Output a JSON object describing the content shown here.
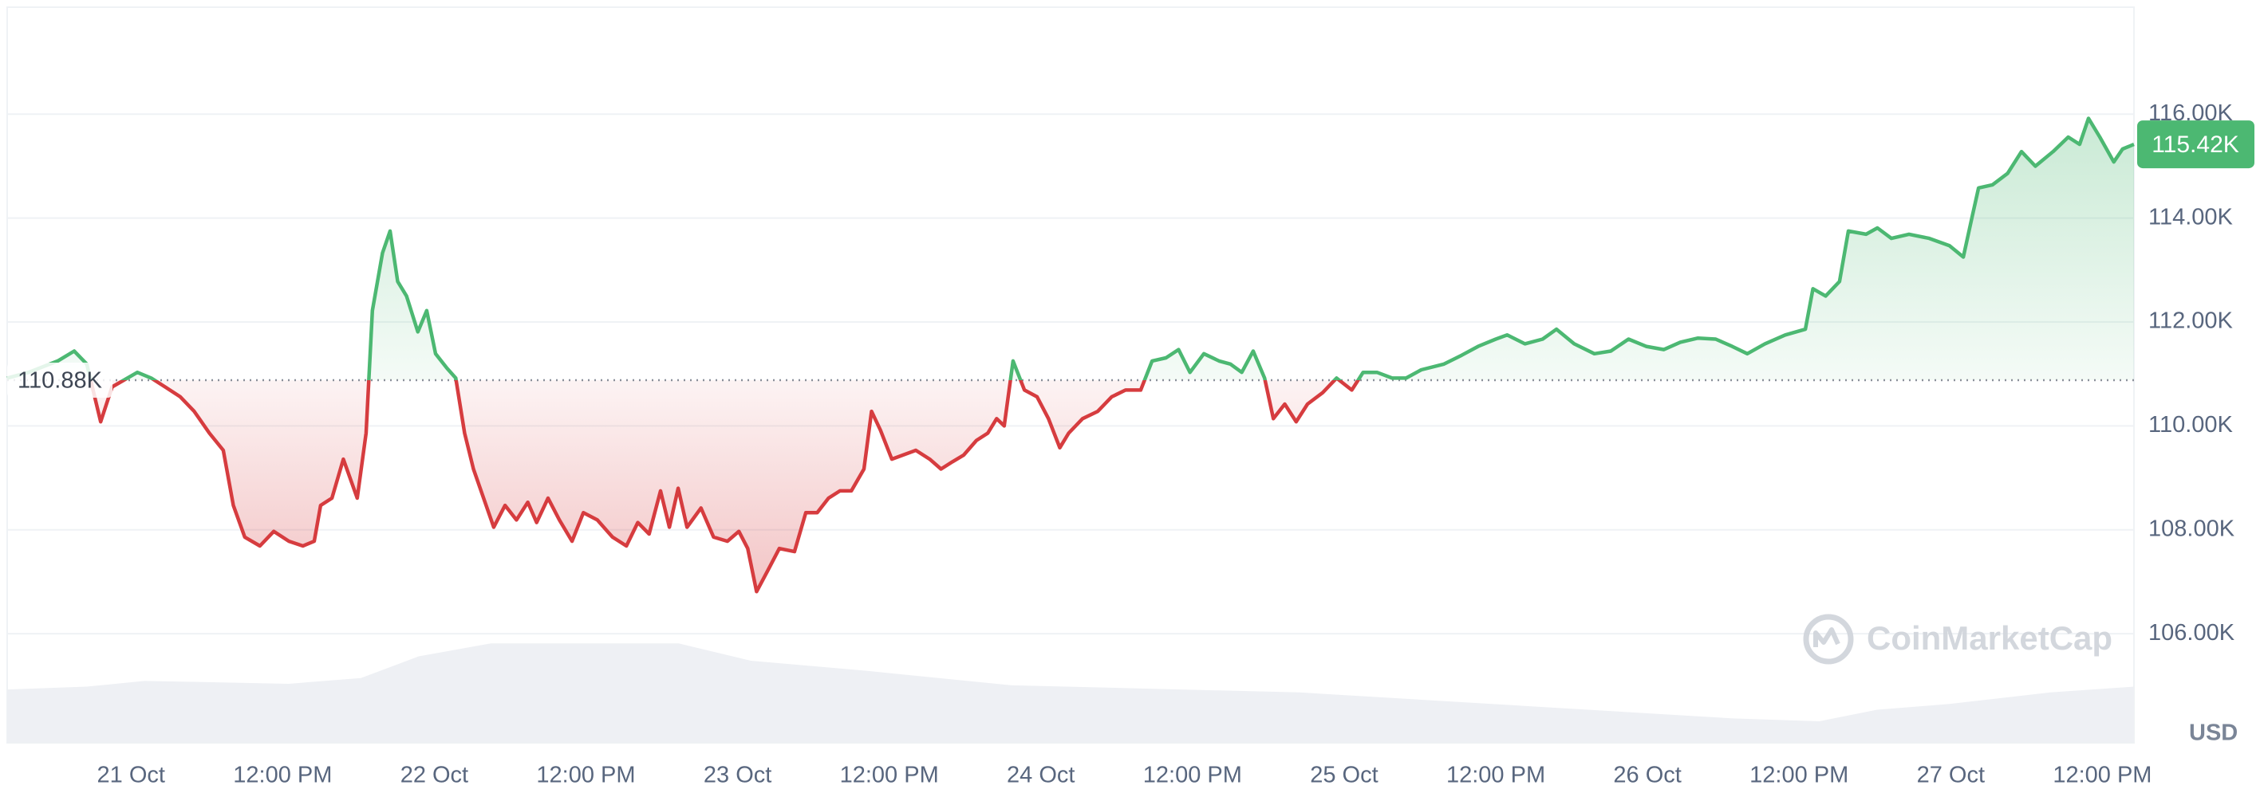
{
  "chart_data": {
    "type": "line",
    "x": [
      -9.8,
      -8.1,
      -5.8,
      -4.5,
      -3.5,
      -2.4,
      -1.5,
      0.5,
      1.6,
      2.7,
      3.9,
      5.0,
      6.2,
      7.3,
      8.1,
      9.0,
      10.2,
      11.3,
      12.5,
      13.6,
      14.5,
      15.0,
      15.9,
      16.8,
      17.9,
      18.6,
      19.1,
      19.9,
      20.5,
      21.1,
      21.8,
      22.7,
      23.4,
      24.1,
      25.0,
      25.7,
      26.4,
      27.1,
      27.9,
      28.7,
      29.6,
      30.5,
      31.4,
      32.1,
      33.0,
      33.9,
      34.9,
      35.8,
      36.9,
      38.1,
      39.2,
      40.1,
      41.0,
      41.9,
      42.6,
      43.3,
      44.0,
      45.1,
      46.1,
      47.2,
      48.1,
      48.8,
      49.5,
      50.4,
      51.3,
      52.5,
      53.4,
      54.3,
      55.2,
      56.1,
      57.0,
      58.0,
      58.6,
      59.3,
      60.2,
      61.1,
      62.1,
      63.2,
      64.1,
      65.0,
      65.9,
      66.9,
      67.8,
      68.5,
      69.1,
      69.8,
      70.7,
      71.7,
      72.6,
      73.5,
      74.2,
      75.3,
      76.5,
      77.6,
      78.7,
      79.9,
      80.8,
      81.9,
      82.9,
      83.8,
      84.9,
      86.1,
      87.0,
      87.9,
      88.8,
      89.7,
      90.4,
      91.3,
      92.2,
      93.1,
      94.3,
      95.4,
      96.6,
      97.5,
      98.6,
      99.8,
      100.9,
      102.1,
      103.9,
      105.3,
      106.6,
      108.0,
      108.9,
      110.3,
      111.7,
      112.8,
      114.2,
      115.8,
      117.1,
      118.5,
      119.9,
      121.3,
      122.6,
      124.0,
      125.4,
      126.7,
      127.9,
      129.3,
      130.9,
      132.5,
      133.1,
      134.1,
      135.2,
      135.9,
      137.3,
      138.2,
      139.3,
      140.7,
      142.3,
      143.9,
      145.0,
      145.7,
      146.2,
      147.3,
      148.5,
      149.6,
      150.7,
      152.1,
      153.3,
      154.2,
      154.9,
      155.8,
      156.9,
      157.6,
      158.5
    ],
    "values": [
      110920,
      111030,
      111250,
      111440,
      111190,
      110080,
      110750,
      111030,
      110920,
      110750,
      110560,
      110280,
      109860,
      109530,
      108470,
      107860,
      107690,
      107970,
      107780,
      107690,
      107780,
      108470,
      108610,
      109360,
      108610,
      109860,
      112220,
      113330,
      113750,
      112780,
      112500,
      111810,
      112220,
      111390,
      111110,
      110920,
      109860,
      109170,
      108610,
      108050,
      108470,
      108190,
      108530,
      108140,
      108610,
      108190,
      107780,
      108330,
      108190,
      107860,
      107690,
      108140,
      107920,
      108750,
      108050,
      108800,
      108050,
      108420,
      107860,
      107780,
      107970,
      107640,
      106810,
      107220,
      107640,
      107580,
      108330,
      108330,
      108610,
      108750,
      108750,
      109170,
      110280,
      109920,
      109360,
      109440,
      109530,
      109360,
      109170,
      109310,
      109440,
      109720,
      109860,
      110140,
      110000,
      111250,
      110690,
      110560,
      110140,
      109580,
      109860,
      110140,
      110280,
      110560,
      110690,
      110690,
      111250,
      111310,
      111470,
      111030,
      111390,
      111250,
      111190,
      111030,
      111440,
      110920,
      110140,
      110420,
      110080,
      110420,
      110640,
      110920,
      110690,
      111030,
      111030,
      110920,
      110920,
      111080,
      111190,
      111360,
      111530,
      111670,
      111750,
      111580,
      111670,
      111860,
      111580,
      111390,
      111440,
      111670,
      111530,
      111470,
      111610,
      111690,
      111670,
      111530,
      111390,
      111580,
      111750,
      111860,
      112640,
      112500,
      112780,
      113750,
      113690,
      113810,
      113610,
      113690,
      113610,
      113470,
      113250,
      114030,
      114580,
      114640,
      114860,
      115280,
      115000,
      115280,
      115560,
      115420,
      115920,
      115560,
      115080,
      115330,
      115420
    ],
    "up_color": "#4cb872",
    "down_color": "#d63c3f",
    "baseline": {
      "value": 110880,
      "label": "110.88K"
    },
    "current_price": {
      "value": 115420,
      "label": "115.42K"
    },
    "xlim": [
      -9.8,
      158.5
    ],
    "xticks": [
      {
        "value": 0,
        "label": "21 Oct"
      },
      {
        "value": 12,
        "label": "12:00 PM"
      },
      {
        "value": 24,
        "label": "22 Oct"
      },
      {
        "value": 36,
        "label": "12:00 PM"
      },
      {
        "value": 48,
        "label": "23 Oct"
      },
      {
        "value": 60,
        "label": "12:00 PM"
      },
      {
        "value": 72,
        "label": "24 Oct"
      },
      {
        "value": 84,
        "label": "12:00 PM"
      },
      {
        "value": 96,
        "label": "25 Oct"
      },
      {
        "value": 108,
        "label": "12:00 PM"
      },
      {
        "value": 120,
        "label": "26 Oct"
      },
      {
        "value": 132,
        "label": "12:00 PM"
      },
      {
        "value": 144,
        "label": "27 Oct"
      },
      {
        "value": 156,
        "label": "12:00 PM"
      }
    ],
    "ylim": [
      103900,
      118060
    ],
    "yticks": [
      {
        "value": 106000,
        "label": "106.00K"
      },
      {
        "value": 108000,
        "label": "108.00K"
      },
      {
        "value": 110000,
        "label": "110.00K"
      },
      {
        "value": 112000,
        "label": "112.00K"
      },
      {
        "value": 114000,
        "label": "114.00K"
      },
      {
        "value": 116000,
        "label": "116.00K"
      }
    ],
    "grid": true,
    "y_unit": "USD",
    "watermark": "CoinMarketCap"
  }
}
